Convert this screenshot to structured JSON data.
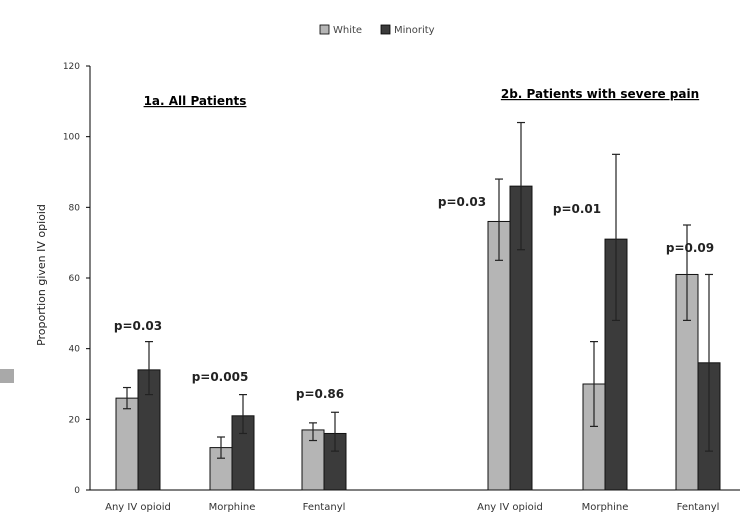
{
  "chart_data": {
    "type": "bar",
    "ylabel": "Proportion given IV opioid",
    "ylim": [
      0,
      120
    ],
    "yticks": [
      0,
      20,
      40,
      60,
      80,
      100,
      120
    ],
    "grid": false,
    "legend_position": "top-center",
    "colors": {
      "White": "#b5b5b5",
      "Minority": "#3b3b3b"
    },
    "series": [
      {
        "name": "White"
      },
      {
        "name": "Minority"
      }
    ],
    "panels": [
      {
        "label": "1a. All Patients",
        "categories": [
          "Any IV opioid",
          "Morphine",
          "Fentanyl"
        ],
        "values": {
          "White": [
            26,
            12,
            17
          ],
          "Minority": [
            34,
            21,
            16
          ]
        },
        "error_low": {
          "White": [
            23,
            9,
            14
          ],
          "Minority": [
            27,
            16,
            11
          ]
        },
        "error_high": {
          "White": [
            29,
            15,
            19
          ],
          "Minority": [
            42,
            27,
            22
          ]
        },
        "annotations": [
          "p=0.03",
          "p=0.005",
          "p=0.86"
        ]
      },
      {
        "label": "2b. Patients with severe pain",
        "categories": [
          "Any IV opioid",
          "Morphine",
          "Fentanyl"
        ],
        "values": {
          "White": [
            76,
            30,
            61
          ],
          "Minority": [
            86,
            71,
            36
          ]
        },
        "error_low": {
          "White": [
            65,
            18,
            48
          ],
          "Minority": [
            68,
            48,
            11
          ]
        },
        "error_high": {
          "White": [
            88,
            42,
            75
          ],
          "Minority": [
            104,
            95,
            61
          ]
        },
        "annotations": [
          "p=0.03",
          "p=0.01",
          "p=0.09"
        ]
      }
    ]
  }
}
